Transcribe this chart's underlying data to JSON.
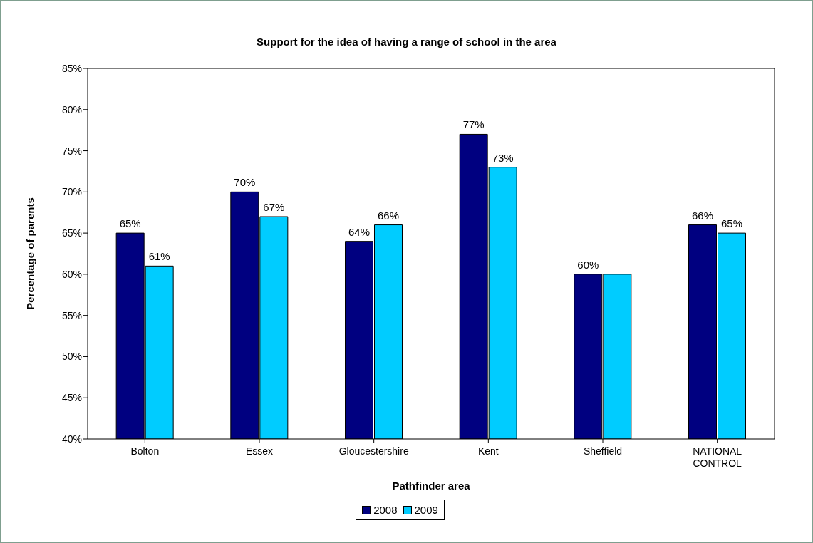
{
  "chart_data": {
    "type": "bar",
    "title": "Support for the idea of having a range of school in the area",
    "xlabel": "Pathfinder area",
    "ylabel": "Percentage of parents",
    "categories": [
      "Bolton",
      "Essex",
      "Gloucestershire",
      "Kent",
      "Sheffield",
      "NATIONAL CONTROL"
    ],
    "series": [
      {
        "name": "2008",
        "color": "#000080",
        "values": [
          65,
          70,
          64,
          77,
          60,
          66
        ],
        "value_labels": [
          "65%",
          "70%",
          "64%",
          "77%",
          "60%",
          "66%"
        ]
      },
      {
        "name": "2009",
        "color": "#00ccff",
        "values": [
          61,
          67,
          66,
          73,
          60,
          65
        ],
        "value_labels": [
          "61%",
          "67%",
          "66%",
          "73%",
          null,
          "65%"
        ]
      }
    ],
    "ylim": [
      40,
      85
    ],
    "yticks": [
      {
        "value": 40,
        "label": "40%"
      },
      {
        "value": 45,
        "label": "45%"
      },
      {
        "value": 50,
        "label": "50%"
      },
      {
        "value": 55,
        "label": "55%"
      },
      {
        "value": 60,
        "label": "60%"
      },
      {
        "value": 65,
        "label": "65%"
      },
      {
        "value": 70,
        "label": "70%"
      },
      {
        "value": 75,
        "label": "75%"
      },
      {
        "value": 80,
        "label": "80%"
      },
      {
        "value": 85,
        "label": "85%"
      }
    ],
    "grid": false,
    "legend": "bottom"
  }
}
